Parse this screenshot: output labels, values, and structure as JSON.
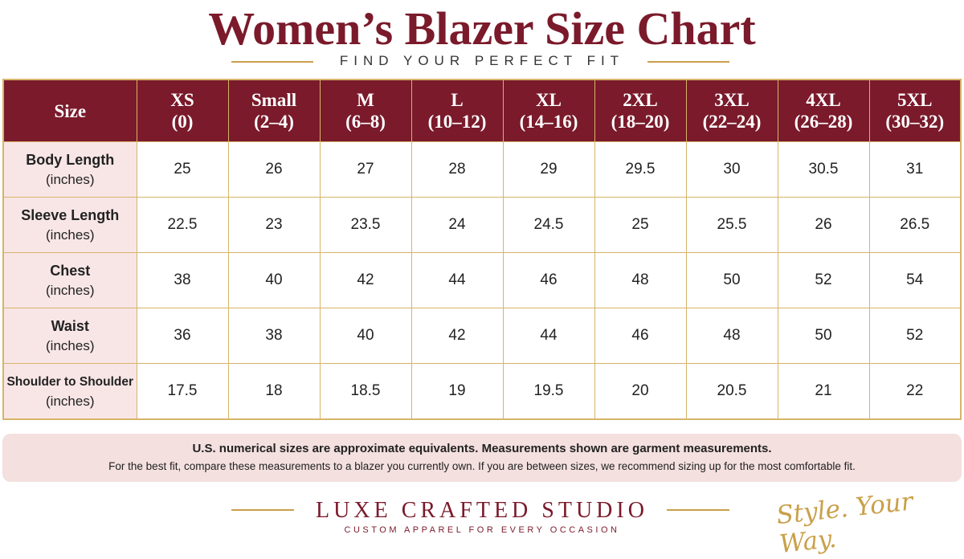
{
  "header": {
    "title": "Women’s Blazer Size Chart",
    "subtitle": "FIND YOUR PERFECT FIT"
  },
  "table": {
    "corner": "Size",
    "columns": [
      {
        "size": "XS",
        "range": "(0)"
      },
      {
        "size": "Small",
        "range": "(2–4)"
      },
      {
        "size": "M",
        "range": "(6–8)"
      },
      {
        "size": "L",
        "range": "(10–12)"
      },
      {
        "size": "XL",
        "range": "(14–16)"
      },
      {
        "size": "2XL",
        "range": "(18–20)"
      },
      {
        "size": "3XL",
        "range": "(22–24)"
      },
      {
        "size": "4XL",
        "range": "(26–28)"
      },
      {
        "size": "5XL",
        "range": "(30–32)"
      }
    ],
    "rows": [
      {
        "label": "Body Length",
        "unit": "(inches)",
        "values": [
          25,
          26,
          27,
          28,
          29,
          29.5,
          30,
          30.5,
          31
        ]
      },
      {
        "label": "Sleeve Length",
        "unit": "(inches)",
        "values": [
          22.5,
          23,
          23.5,
          24,
          24.5,
          25,
          25.5,
          26,
          26.5
        ]
      },
      {
        "label": "Chest",
        "unit": "(inches)",
        "values": [
          38,
          40,
          42,
          44,
          46,
          48,
          50,
          52,
          54
        ]
      },
      {
        "label": "Waist",
        "unit": "(inches)",
        "values": [
          36,
          38,
          40,
          42,
          44,
          46,
          48,
          50,
          52
        ]
      },
      {
        "label": "Shoulder to Shoulder",
        "unit": "(inches)",
        "values": [
          17.5,
          18,
          18.5,
          19,
          19.5,
          20,
          20.5,
          21,
          22
        ]
      }
    ]
  },
  "notes": [
    "U.S. numerical sizes are approximate equivalents. Measurements shown are garment measurements.",
    "For the best fit, compare these measurements to a blazer you currently own. If you are between sizes, we recommend sizing up for the most comfortable fit."
  ],
  "footer": {
    "brand": "LUXE CRAFTED STUDIO",
    "tagline": "CUSTOM APPAREL FOR EVERY OCCASION",
    "slogan": "Style. Your Way."
  }
}
